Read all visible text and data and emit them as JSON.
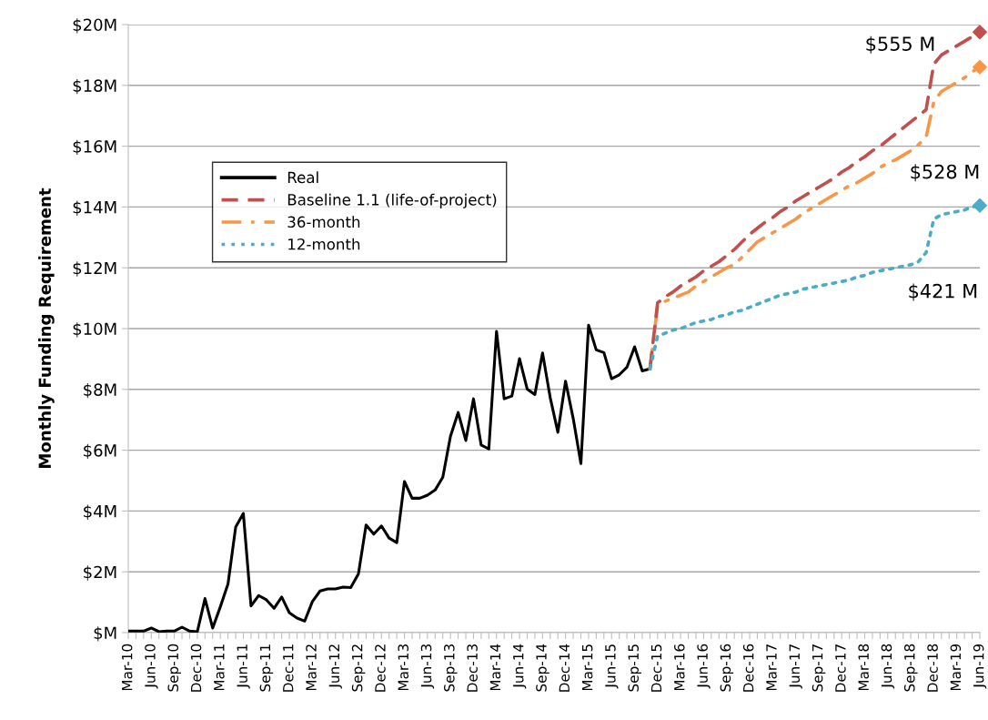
{
  "chart_data": {
    "type": "line",
    "ylabel": "Monthly Funding Requirement",
    "categories": [
      "Mar-10",
      null,
      null,
      "Jun-10",
      null,
      null,
      "Sep-10",
      null,
      null,
      "Dec-10",
      null,
      null,
      "Mar-11",
      null,
      null,
      "Jun-11",
      null,
      null,
      "Sep-11",
      null,
      null,
      "Dec-11",
      null,
      null,
      "Mar-12",
      null,
      null,
      "Jun-12",
      null,
      null,
      "Sep-12",
      null,
      null,
      "Dec-12",
      null,
      null,
      "Mar-13",
      null,
      null,
      "Jun-13",
      null,
      null,
      "Sep-13",
      null,
      null,
      "Dec-13",
      null,
      null,
      "Mar-14",
      null,
      null,
      "Jun-14",
      null,
      null,
      "Sep-14",
      null,
      null,
      "Dec-14",
      null,
      null,
      "Mar-15",
      null,
      null,
      "Jun-15",
      null,
      null,
      "Sep-15",
      null,
      null,
      "Dec-15",
      null,
      null,
      "Mar-16",
      null,
      null,
      "Jun-16",
      null,
      null,
      "Sep-16",
      null,
      null,
      "Dec-16",
      null,
      null,
      "Mar-17",
      null,
      null,
      "Jun-17",
      null,
      null,
      "Sep-17",
      null,
      null,
      "Dec-17",
      null,
      null,
      "Mar-18",
      null,
      null,
      "Jun-18",
      null,
      null,
      "Sep-18",
      null,
      null,
      "Dec-18",
      null,
      null,
      "Mar-19",
      null,
      null,
      "Jun-19"
    ],
    "ylim": [
      0,
      20
    ],
    "yticks": [
      {
        "value": 0,
        "label": "$M"
      },
      {
        "value": 2,
        "label": "$2M"
      },
      {
        "value": 4,
        "label": "$4M"
      },
      {
        "value": 6,
        "label": "$6M"
      },
      {
        "value": 8,
        "label": "$8M"
      },
      {
        "value": 10,
        "label": "$10M"
      },
      {
        "value": 12,
        "label": "$12M"
      },
      {
        "value": 14,
        "label": "$14M"
      },
      {
        "value": 16,
        "label": "$16M"
      },
      {
        "value": 18,
        "label": "$18M"
      },
      {
        "value": 20,
        "label": "$20M"
      }
    ],
    "grid": "y",
    "legend": "top left",
    "series": [
      {
        "name": "Real",
        "color": "#000000",
        "line_style": "solid",
        "values": [
          0.05,
          0.05,
          0.05,
          0.15,
          0.03,
          0.05,
          0.05,
          0.18,
          0.05,
          0.03,
          1.12,
          0.15,
          0.85,
          1.6,
          3.47,
          3.92,
          0.88,
          1.22,
          1.08,
          0.8,
          1.17,
          0.65,
          0.48,
          0.38,
          1.02,
          1.37,
          1.44,
          1.44,
          1.5,
          1.48,
          1.93,
          3.54,
          3.24,
          3.51,
          3.11,
          2.96,
          4.97,
          4.42,
          4.42,
          4.52,
          4.69,
          5.11,
          6.46,
          7.24,
          6.32,
          7.69,
          6.17,
          6.04,
          9.91,
          7.69,
          7.78,
          9.01,
          8.01,
          7.83,
          9.2,
          7.73,
          6.59,
          8.27,
          7.04,
          5.56,
          10.11,
          9.3,
          9.21,
          8.35,
          8.48,
          8.73,
          9.4,
          8.61,
          8.68,
          null,
          null,
          null,
          null,
          null,
          null,
          null,
          null,
          null,
          null,
          null,
          null,
          null,
          null,
          null,
          null,
          null,
          null,
          null,
          null,
          null,
          null,
          null,
          null,
          null,
          null,
          null,
          null,
          null,
          null,
          null,
          null,
          null,
          null,
          null,
          null,
          null,
          null,
          null,
          null,
          null,
          null,
          null
        ]
      },
      {
        "name": "Baseline 1.1 (life-of-project)",
        "color": "#c0504d",
        "line_style": "dashed",
        "values": [
          null,
          null,
          null,
          null,
          null,
          null,
          null,
          null,
          null,
          null,
          null,
          null,
          null,
          null,
          null,
          null,
          null,
          null,
          null,
          null,
          null,
          null,
          null,
          null,
          null,
          null,
          null,
          null,
          null,
          null,
          null,
          null,
          null,
          null,
          null,
          null,
          null,
          null,
          null,
          null,
          null,
          null,
          null,
          null,
          null,
          null,
          null,
          null,
          null,
          null,
          null,
          null,
          null,
          null,
          null,
          null,
          null,
          null,
          null,
          null,
          null,
          null,
          null,
          null,
          null,
          null,
          null,
          null,
          8.68,
          10.85,
          11.05,
          11.2,
          11.4,
          11.55,
          11.7,
          11.9,
          12.05,
          12.2,
          12.4,
          12.6,
          12.85,
          13.1,
          13.3,
          13.5,
          13.65,
          13.85,
          14.0,
          14.2,
          14.35,
          14.5,
          14.65,
          14.8,
          14.95,
          15.15,
          15.3,
          15.5,
          15.65,
          15.85,
          16.0,
          16.2,
          16.4,
          16.6,
          16.8,
          17.0,
          17.2,
          18.7,
          19.0,
          19.15,
          19.3,
          19.45,
          19.6,
          19.75
        ]
      },
      {
        "name": "36-month",
        "color": "#f79646",
        "line_style": "dashdot",
        "values": [
          null,
          null,
          null,
          null,
          null,
          null,
          null,
          null,
          null,
          null,
          null,
          null,
          null,
          null,
          null,
          null,
          null,
          null,
          null,
          null,
          null,
          null,
          null,
          null,
          null,
          null,
          null,
          null,
          null,
          null,
          null,
          null,
          null,
          null,
          null,
          null,
          null,
          null,
          null,
          null,
          null,
          null,
          null,
          null,
          null,
          null,
          null,
          null,
          null,
          null,
          null,
          null,
          null,
          null,
          null,
          null,
          null,
          null,
          null,
          null,
          null,
          null,
          null,
          null,
          null,
          null,
          null,
          null,
          8.68,
          10.75,
          10.9,
          11.0,
          11.1,
          11.2,
          11.4,
          11.55,
          11.7,
          11.85,
          12.0,
          12.1,
          12.35,
          12.6,
          12.85,
          13.0,
          13.15,
          13.3,
          13.45,
          13.6,
          13.8,
          13.95,
          14.1,
          14.25,
          14.4,
          14.55,
          14.7,
          14.8,
          14.95,
          15.1,
          15.3,
          15.45,
          15.55,
          15.7,
          15.85,
          16.05,
          16.3,
          17.45,
          17.8,
          17.95,
          18.1,
          18.25,
          18.45,
          18.6
        ]
      },
      {
        "name": "12-month",
        "color": "#4bacc6",
        "line_style": "dotted",
        "values": [
          null,
          null,
          null,
          null,
          null,
          null,
          null,
          null,
          null,
          null,
          null,
          null,
          null,
          null,
          null,
          null,
          null,
          null,
          null,
          null,
          null,
          null,
          null,
          null,
          null,
          null,
          null,
          null,
          null,
          null,
          null,
          null,
          null,
          null,
          null,
          null,
          null,
          null,
          null,
          null,
          null,
          null,
          null,
          null,
          null,
          null,
          null,
          null,
          null,
          null,
          null,
          null,
          null,
          null,
          null,
          null,
          null,
          null,
          null,
          null,
          null,
          null,
          null,
          null,
          null,
          null,
          null,
          null,
          8.68,
          9.75,
          9.85,
          9.95,
          10.0,
          10.1,
          10.2,
          10.25,
          10.3,
          10.4,
          10.45,
          10.55,
          10.6,
          10.7,
          10.8,
          10.9,
          11.0,
          11.1,
          11.15,
          11.2,
          11.3,
          11.35,
          11.4,
          11.45,
          11.5,
          11.55,
          11.6,
          11.7,
          11.75,
          11.85,
          11.9,
          11.95,
          12.0,
          12.05,
          12.1,
          12.2,
          12.5,
          13.6,
          13.75,
          13.8,
          13.85,
          13.9,
          14.0,
          14.05
        ]
      },
      {
        "type": "scatter",
        "color": "#c0504d",
        "marker": "diamond",
        "x": [
          "Jun-19"
        ],
        "values": [
          19.75
        ]
      },
      {
        "type": "scatter",
        "color": "#f79646",
        "marker": "diamond",
        "x": [
          "Jun-19"
        ],
        "values": [
          18.6
        ]
      },
      {
        "type": "scatter",
        "color": "#4bacc6",
        "marker": "diamond",
        "x": [
          "Jun-19"
        ],
        "values": [
          14.05
        ]
      }
    ],
    "annotations": [
      "$555 M",
      "$528 M",
      "$421 M"
    ]
  }
}
